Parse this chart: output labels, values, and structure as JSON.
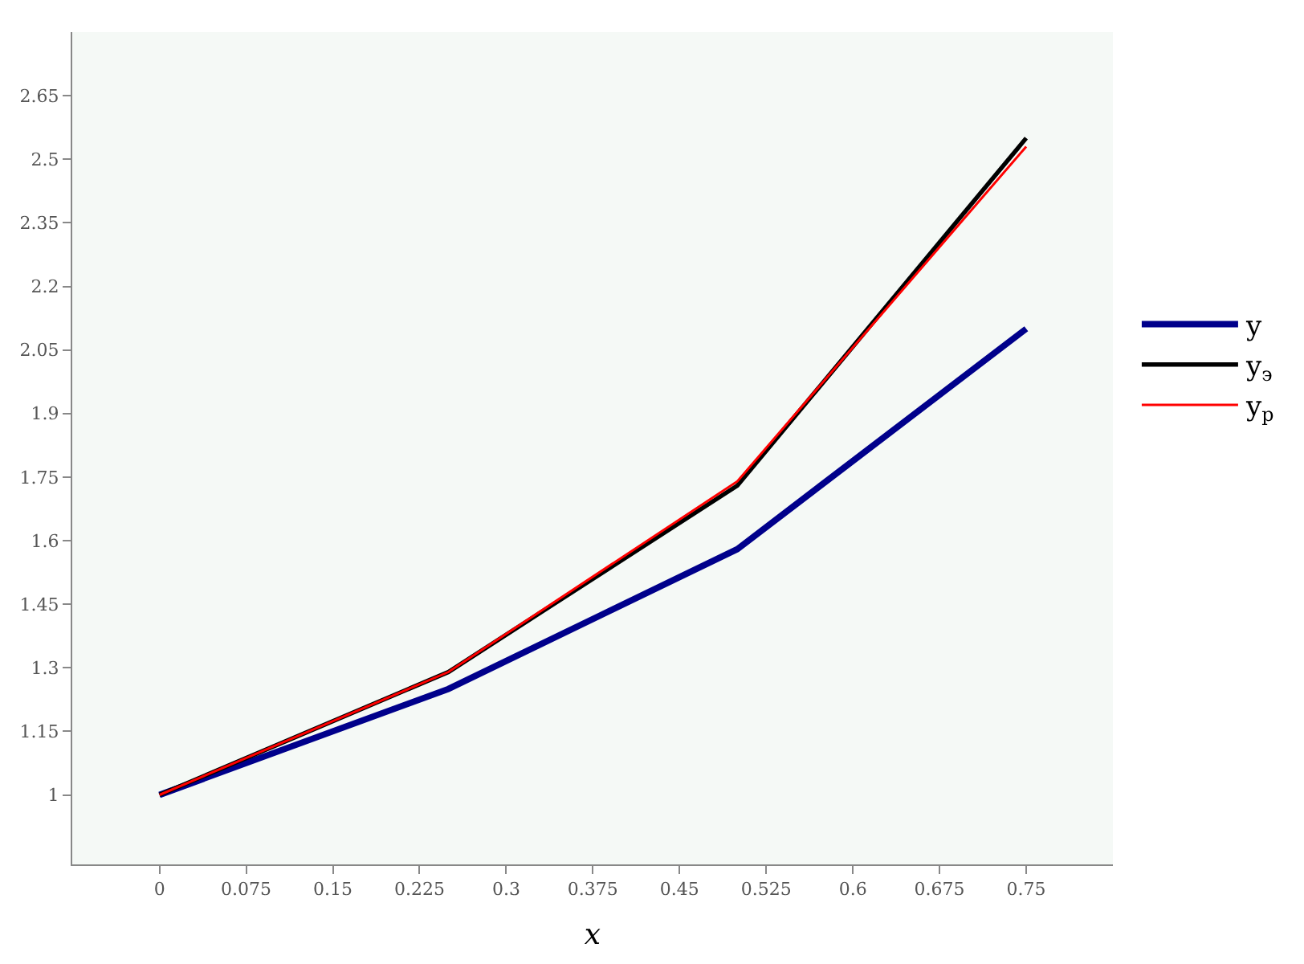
{
  "chart_data": {
    "type": "line",
    "xlabel": "x",
    "x": [
      0,
      0.25,
      0.5,
      0.75
    ],
    "series": [
      {
        "name": "y",
        "color": "#00008b",
        "values": [
          1,
          1.25,
          1.58,
          2.1
        ]
      },
      {
        "name": "y$_{э}$",
        "color": "#000000",
        "values": [
          1,
          1.29,
          1.73,
          2.55
        ]
      },
      {
        "name": "y$_{p}$",
        "color": "#ff0000",
        "values": [
          1,
          1.29,
          1.74,
          2.53
        ]
      }
    ],
    "xlim": [
      -0.0755,
      0.825
    ],
    "xticks": [
      0,
      0.075,
      0.15,
      0.225,
      0.3,
      0.375,
      0.45,
      0.525,
      0.6,
      0.675,
      0.75
    ],
    "ylim": [
      0.836,
      2.8
    ],
    "yticks": [
      1,
      1.15,
      1.3,
      1.45,
      1.6,
      1.75,
      1.9,
      2.05,
      2.2,
      2.35,
      2.5,
      2.65
    ],
    "grid": false,
    "legend": "right",
    "marker": "none",
    "line_style": "solid"
  }
}
